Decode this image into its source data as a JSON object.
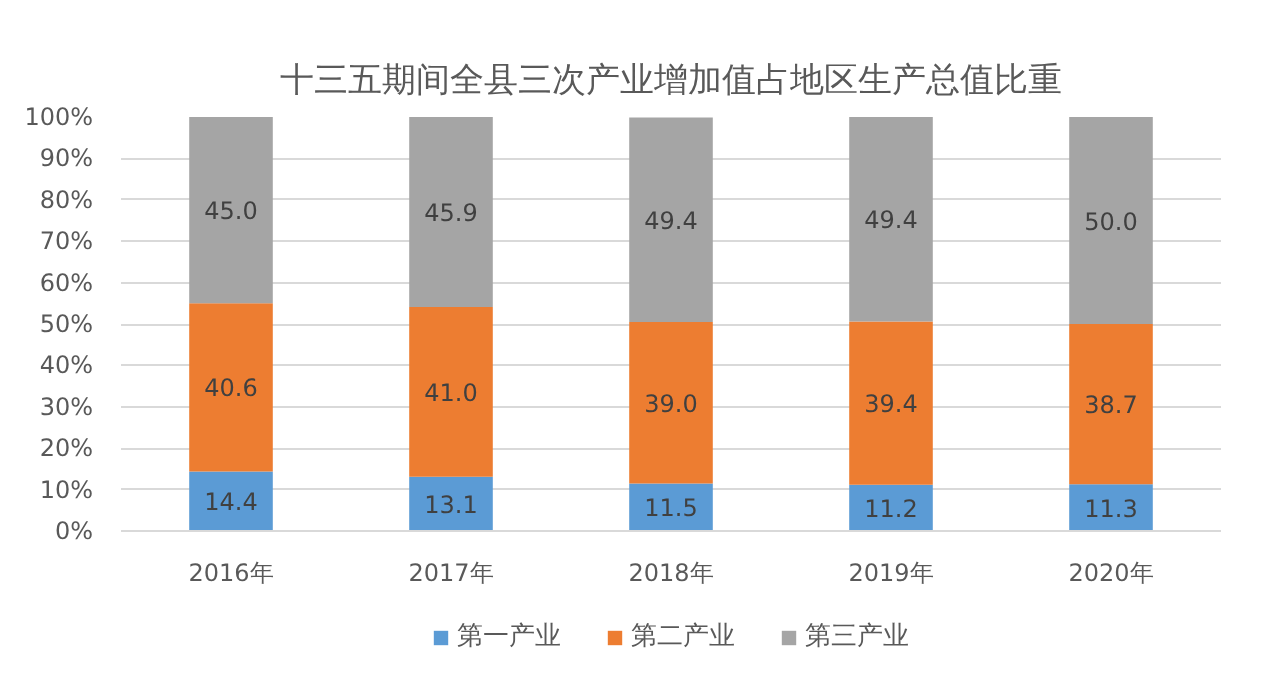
{
  "chart_data": {
    "type": "bar",
    "title": "十三五期间全县三次产业增加值占地区生产总值比重",
    "categories": [
      "2016年",
      "2017年",
      "2018年",
      "2019年",
      "2020年"
    ],
    "stacked": true,
    "series": [
      {
        "name": "第一产业",
        "color": "#5b9bd5",
        "values": [
          14.4,
          13.1,
          11.5,
          11.2,
          11.3
        ],
        "value_labels": [
          "14.4",
          "13.1",
          "11.5",
          "11.2",
          "11.3"
        ]
      },
      {
        "name": "第二产业",
        "color": "#ed7d31",
        "values": [
          40.6,
          41.0,
          39.0,
          39.4,
          38.7
        ],
        "value_labels": [
          "40.6",
          "41.0",
          "39.0",
          "39.4",
          "38.7"
        ]
      },
      {
        "name": "第三产业",
        "color": "#a5a5a5",
        "values": [
          45.0,
          45.9,
          49.4,
          49.4,
          50.0
        ],
        "value_labels": [
          "45.0",
          "45.9",
          "49.4",
          "49.4",
          "50.0"
        ]
      }
    ],
    "ylim": [
      0,
      100
    ],
    "yticks": [
      {
        "value": 0,
        "label": "0%"
      },
      {
        "value": 10,
        "label": "10%"
      },
      {
        "value": 20,
        "label": "20%"
      },
      {
        "value": 30,
        "label": "30%"
      },
      {
        "value": 40,
        "label": "40%"
      },
      {
        "value": 50,
        "label": "50%"
      },
      {
        "value": 60,
        "label": "60%"
      },
      {
        "value": 70,
        "label": "70%"
      },
      {
        "value": 80,
        "label": "80%"
      },
      {
        "value": 90,
        "label": "90%"
      },
      {
        "value": 100,
        "label": "100%"
      }
    ],
    "grid": "y",
    "legend": "bottom"
  }
}
